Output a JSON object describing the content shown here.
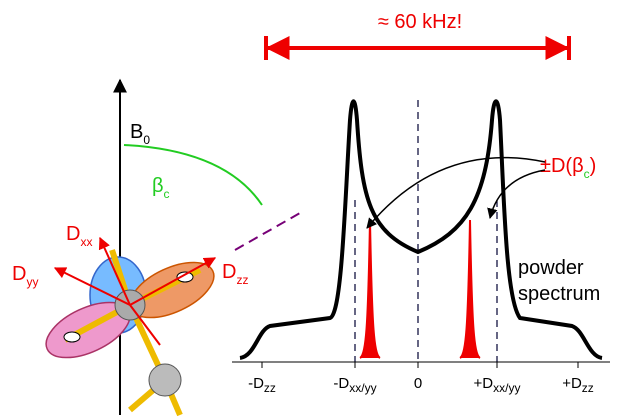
{
  "header": {
    "title": "≈ 60 kHz!"
  },
  "labels": {
    "b0": {
      "main": "B",
      "sub": "0"
    },
    "beta": {
      "main": "β",
      "sub": "c"
    },
    "dxx": {
      "main": "D",
      "sub": "xx"
    },
    "dyy": {
      "main": "D",
      "sub": "yy"
    },
    "dzz": {
      "main": "D",
      "sub": "zz"
    },
    "dbeta": {
      "prefix": "±D(",
      "main": "β",
      "sub": "c",
      "suffix": ")"
    },
    "powder": [
      "powder",
      "spectrum"
    ]
  },
  "axis": {
    "labels": [
      {
        "main": "-D",
        "sub": "zz"
      },
      {
        "main": "-D",
        "sub": "xx/yy"
      },
      {
        "main": "0"
      },
      {
        "main": "+D",
        "sub": "xx/yy"
      },
      {
        "main": "+D",
        "sub": "zz"
      }
    ]
  }
}
